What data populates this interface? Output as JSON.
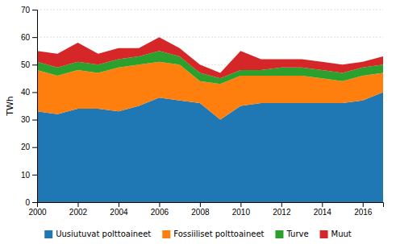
{
  "chart_data": {
    "type": "area",
    "stacked": true,
    "ylabel": "TWh",
    "x": [
      2000,
      2001,
      2002,
      2003,
      2004,
      2005,
      2006,
      2007,
      2008,
      2009,
      2010,
      2011,
      2012,
      2013,
      2014,
      2015,
      2016,
      2017
    ],
    "series": [
      {
        "name": "Uusiutuvat polttoaineet",
        "values": [
          33,
          32,
          34,
          34,
          33,
          35,
          38,
          37,
          36,
          30,
          35,
          36,
          36,
          36,
          36,
          36,
          37,
          40
        ]
      },
      {
        "name": "Fossiiliset polttoaineet",
        "values": [
          15,
          14,
          14,
          13,
          16,
          15,
          13,
          13,
          8,
          13,
          11,
          10,
          10,
          10,
          9,
          8,
          9,
          7
        ]
      },
      {
        "name": "Turve",
        "values": [
          3,
          3,
          3,
          3,
          3,
          3,
          4,
          3,
          3,
          2,
          2,
          2,
          3,
          3,
          3,
          3,
          3,
          3
        ]
      },
      {
        "name": "Muut",
        "values": [
          4,
          5,
          7,
          4,
          4,
          3,
          5,
          3,
          3,
          2,
          7,
          4,
          3,
          3,
          3,
          3,
          2,
          3
        ]
      }
    ],
    "xlim": [
      2000,
      2017
    ],
    "xticks": [
      2000,
      2002,
      2004,
      2006,
      2008,
      2010,
      2012,
      2014,
      2016
    ],
    "ylim": [
      0,
      70
    ],
    "yticks": [
      0,
      10,
      20,
      30,
      40,
      50,
      60,
      70
    ],
    "grid": true,
    "legend": "bottom"
  }
}
